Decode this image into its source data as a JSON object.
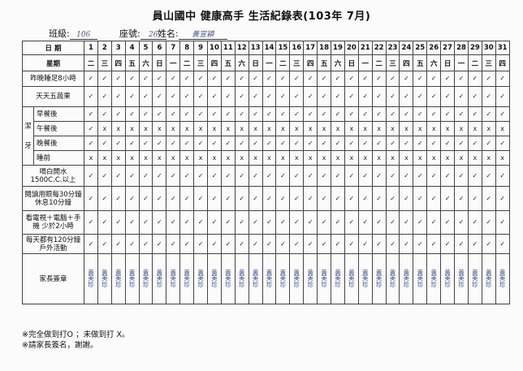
{
  "title": "員山國中 健康高手 生活紀錄表(103年 7月)",
  "header": {
    "class_label": "班級:",
    "class_value": "106",
    "seat_label": "座號:",
    "seat_value": "26",
    "name_label": "姓名:",
    "name_value": "黃宣穎"
  },
  "table": {
    "date_label": "日 期",
    "weekday_label": "星期",
    "dates": [
      "1",
      "2",
      "3",
      "4",
      "5",
      "6",
      "7",
      "8",
      "9",
      "10",
      "11",
      "12",
      "13",
      "14",
      "15",
      "16",
      "17",
      "18",
      "19",
      "20",
      "21",
      "22",
      "23",
      "24",
      "25",
      "26",
      "27",
      "28",
      "29",
      "30",
      "31"
    ],
    "weekdays": [
      "二",
      "三",
      "四",
      "五",
      "六",
      "日",
      "一",
      "二",
      "三",
      "四",
      "五",
      "六",
      "日",
      "一",
      "二",
      "三",
      "四",
      "五",
      "六",
      "日",
      "一",
      "二",
      "三",
      "四",
      "五",
      "六",
      "日",
      "一",
      "二",
      "三",
      "四"
    ],
    "brushing_group": "潔牙",
    "rows": [
      {
        "label": "昨晚睡足8小時",
        "marks": [
          "✓",
          "✓",
          "✓",
          "✓",
          "✓",
          "✓",
          "✓",
          "✓",
          "✓",
          "✓",
          "✓",
          "✓",
          "✓",
          "✓",
          "✓",
          "✓",
          "✓",
          "✓",
          "✓",
          "✓",
          "✓",
          "✓",
          "✓",
          "✓",
          "✓",
          "✓",
          "✓",
          "✓",
          "✓",
          "✓",
          "✓"
        ]
      },
      {
        "label": "天天五蔬果",
        "marks": [
          "✓",
          "✓",
          "✓",
          "✓",
          "✓",
          "✓",
          "✓",
          "✓",
          "✓",
          "✓",
          "✓",
          "✓",
          "✓",
          "✓",
          "✓",
          "✓",
          "✓",
          "✓",
          "✓",
          "✓",
          "✓",
          "✓",
          "✓",
          "✓",
          "✓",
          "✓",
          "✓",
          "✓",
          "✓",
          "✓",
          "✓"
        ]
      },
      {
        "label": "早餐後",
        "marks": [
          "✓",
          "✓",
          "✓",
          "✓",
          "✓",
          "✓",
          "✓",
          "✓",
          "✓",
          "✓",
          "✓",
          "✓",
          "✓",
          "✓",
          "✓",
          "✓",
          "✓",
          "✓",
          "✓",
          "✓",
          "✓",
          "✓",
          "✓",
          "✓",
          "✓",
          "✓",
          "✓",
          "✓",
          "✓",
          "✓",
          "✓"
        ]
      },
      {
        "label": "午餐後",
        "marks": [
          "✓",
          "x",
          "x",
          "x",
          "x",
          "x",
          "x",
          "x",
          "x",
          "x",
          "x",
          "x",
          "x",
          "x",
          "x",
          "x",
          "x",
          "x",
          "x",
          "x",
          "x",
          "x",
          "x",
          "x",
          "x",
          "x",
          "x",
          "x",
          "x",
          "x",
          "x"
        ]
      },
      {
        "label": "晚餐後",
        "marks": [
          "✓",
          "✓",
          "✓",
          "✓",
          "✓",
          "✓",
          "✓",
          "✓",
          "✓",
          "✓",
          "✓",
          "✓",
          "✓",
          "✓",
          "✓",
          "✓",
          "✓",
          "✓",
          "✓",
          "✓",
          "✓",
          "✓",
          "✓",
          "✓",
          "✓",
          "✓",
          "✓",
          "✓",
          "✓",
          "✓",
          "✓"
        ]
      },
      {
        "label": "睡前",
        "marks": [
          "x",
          "x",
          "x",
          "x",
          "x",
          "x",
          "x",
          "x",
          "x",
          "x",
          "x",
          "x",
          "x",
          "x",
          "x",
          "x",
          "x",
          "x",
          "x",
          "x",
          "x",
          "x",
          "x",
          "x",
          "x",
          "x",
          "x",
          "x",
          "x",
          "x",
          "x"
        ]
      },
      {
        "label": "喝白開水 1500C.C.以上",
        "marks": [
          "✓",
          "✓",
          "✓",
          "✓",
          "✓",
          "✓",
          "✓",
          "✓",
          "✓",
          "✓",
          "✓",
          "✓",
          "✓",
          "✓",
          "✓",
          "✓",
          "✓",
          "✓",
          "✓",
          "✓",
          "✓",
          "✓",
          "✓",
          "✓",
          "✓",
          "✓",
          "✓",
          "✓",
          "✓",
          "✓",
          "✓"
        ]
      },
      {
        "label": "閱讀用眼每30分鐘休息10分鐘",
        "marks": [
          "✓",
          "✓",
          "✓",
          "✓",
          "✓",
          "✓",
          "✓",
          "✓",
          "✓",
          "✓",
          "✓",
          "✓",
          "✓",
          "✓",
          "✓",
          "✓",
          "✓",
          "✓",
          "✓",
          "✓",
          "✓",
          "✓",
          "✓",
          "✓",
          "✓",
          "✓",
          "✓",
          "✓",
          "✓",
          "✓",
          "✓"
        ]
      },
      {
        "label": "看電視＋電腦＋手機 少於2小時",
        "marks": [
          "✓",
          "✓",
          "✓",
          "✓",
          "✓",
          "✓",
          "✓",
          "✓",
          "✓",
          "✓",
          "✓",
          "✓",
          "✓",
          "✓",
          "✓",
          "✓",
          "✓",
          "✓",
          "✓",
          "✓",
          "✓",
          "✓",
          "✓",
          "✓",
          "✓",
          "✓",
          "✓",
          "✓",
          "✓",
          "✓",
          "✓"
        ]
      },
      {
        "label": "每天都有120分鐘戶外活動",
        "marks": [
          "✓",
          "✓",
          "✓",
          "✓",
          "✓",
          "✓",
          "✓",
          "✓",
          "✓",
          "✓",
          "✓",
          "✓",
          "✓",
          "✓",
          "✓",
          "✓",
          "✓",
          "✓",
          "✓",
          "✓",
          "✓",
          "✓",
          "✓",
          "✓",
          "✓",
          "✓",
          "✓",
          "✓",
          "✓",
          "✓",
          "✓"
        ]
      }
    ],
    "signature_label": "家長簽章",
    "signature_text": "黃美珍"
  },
  "footer": {
    "note1": "※完全做到打O ；未做到打 X。",
    "note2": "※請家長簽名，謝謝。"
  }
}
